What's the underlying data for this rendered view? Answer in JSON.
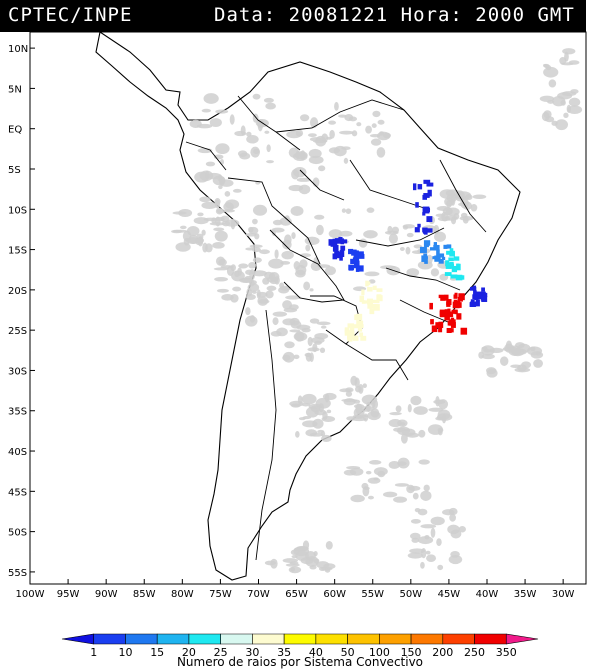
{
  "header": {
    "source": "CPTEC/INPE",
    "date_label": "Data:",
    "date": "20081221",
    "time_label": "Hora:",
    "time": "2000 GMT"
  },
  "map": {
    "lat_labels": [
      "10N",
      "5N",
      "EQ",
      "5S",
      "10S",
      "15S",
      "20S",
      "25S",
      "30S",
      "35S",
      "40S",
      "45S",
      "50S",
      "55S"
    ],
    "lon_labels": [
      "100W",
      "95W",
      "90W",
      "85W",
      "80W",
      "75W",
      "70W",
      "65W",
      "60W",
      "55W",
      "50W",
      "45W",
      "40W",
      "35W",
      "30W"
    ],
    "lat_values": [
      10,
      5,
      0,
      -5,
      -10,
      -15,
      -20,
      -25,
      -30,
      -35,
      -40,
      -45,
      -50,
      -55
    ],
    "lon_values": [
      -100,
      -95,
      -90,
      -85,
      -80,
      -75,
      -70,
      -65,
      -60,
      -55,
      -50,
      -45,
      -40,
      -35,
      -30
    ],
    "extent": {
      "lon_min": -100,
      "lon_max": -27,
      "lat_min": -56.5,
      "lat_max": 12
    },
    "land_color": "#ffffff",
    "ocean_color": "#ffffff",
    "cloud_color": "#cfcfcf",
    "lightning_clusters": [
      {
        "region": "central Brazil north",
        "class": "1",
        "color": "#1b22e0",
        "lon": -48.5,
        "lat": -9.5
      },
      {
        "region": "Mato Grosso",
        "class": "10",
        "color": "#1b22e0",
        "lon": -60,
        "lat": -14.5
      },
      {
        "region": "Mato Grosso south",
        "class": "10",
        "color": "#1b3ef0",
        "lon": -57.5,
        "lat": -16
      },
      {
        "region": "Goias / Minas",
        "class": "15",
        "color": "#2a88f0",
        "lon": -47,
        "lat": -15
      },
      {
        "region": "Minas Gerais",
        "class": "25",
        "color": "#1fe8f0",
        "lon": -44.5,
        "lat": -16.5
      },
      {
        "region": "Paraguay / Mato Grosso do Sul",
        "class": "30",
        "color": "#fdfbd0",
        "lon": -55.5,
        "lat": -20.5
      },
      {
        "region": "Parana border",
        "class": "30",
        "color": "#fdfbd0",
        "lon": -57.5,
        "lat": -24.5
      },
      {
        "region": "Sao Paulo / Rio",
        "class": "350",
        "color": "#f00000",
        "lon": -45.5,
        "lat": -22.5
      },
      {
        "region": "Espirito Santo",
        "class": "10",
        "color": "#1b22e0",
        "lon": -41.5,
        "lat": -20.5
      }
    ]
  },
  "colorbar": {
    "values": [
      "1",
      "10",
      "15",
      "20",
      "25",
      "30",
      "35",
      "40",
      "50",
      "100",
      "150",
      "200",
      "250",
      "350"
    ],
    "colors": [
      "#1010e0",
      "#1a3ef0",
      "#1f78f0",
      "#1fb4f0",
      "#1fe8f0",
      "#d8f8f0",
      "#fdfbd0",
      "#fdfb00",
      "#fde000",
      "#fdc200",
      "#fda000",
      "#fd7800",
      "#fd4000",
      "#f00000",
      "#f01a8a"
    ],
    "caption": "Numero de raios por Sistema Convectivo"
  }
}
